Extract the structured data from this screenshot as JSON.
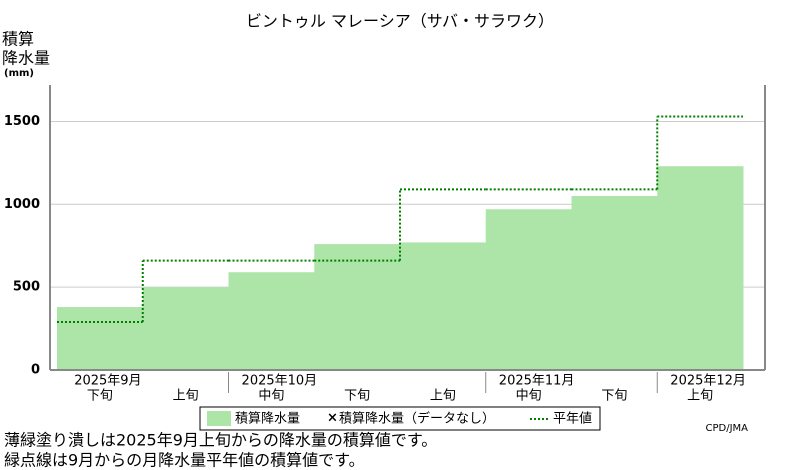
{
  "chart_data": {
    "type": "step-area",
    "title": "ビントゥル マレーシア（サバ・サラワク）",
    "y_label": [
      "積算",
      "降水量",
      "(mm)"
    ],
    "categories": [
      "下旬",
      "上旬",
      "中旬",
      "下旬",
      "上旬",
      "中旬",
      "下旬",
      "上旬"
    ],
    "months": [
      "2025年9月",
      null,
      "2025年10月",
      null,
      null,
      "2025年11月",
      null,
      "2025年12月"
    ],
    "series": [
      {
        "name": "積算降水量",
        "color": "#ade5a9",
        "values": [
          380,
          500,
          590,
          760,
          770,
          970,
          1050,
          1230
        ]
      },
      {
        "name": "積算降水量（データなし）",
        "color": "#000000",
        "values": [
          null,
          null,
          null,
          null,
          null,
          null,
          null,
          null
        ]
      },
      {
        "name": "平年値",
        "color": "#008000",
        "values": [
          290,
          660,
          660,
          660,
          1090,
          1090,
          1090,
          1530
        ]
      }
    ],
    "ylim": [
      0,
      1720
    ],
    "yticks": [
      0,
      500,
      1000,
      1500
    ],
    "grid": true,
    "credit": "CPD/JMA",
    "notes": [
      "薄緑塗り潰しは2025年9月上旬からの降水量の積算値です。",
      "緑点線は9月からの月降水量平年値の積算値です。"
    ]
  }
}
